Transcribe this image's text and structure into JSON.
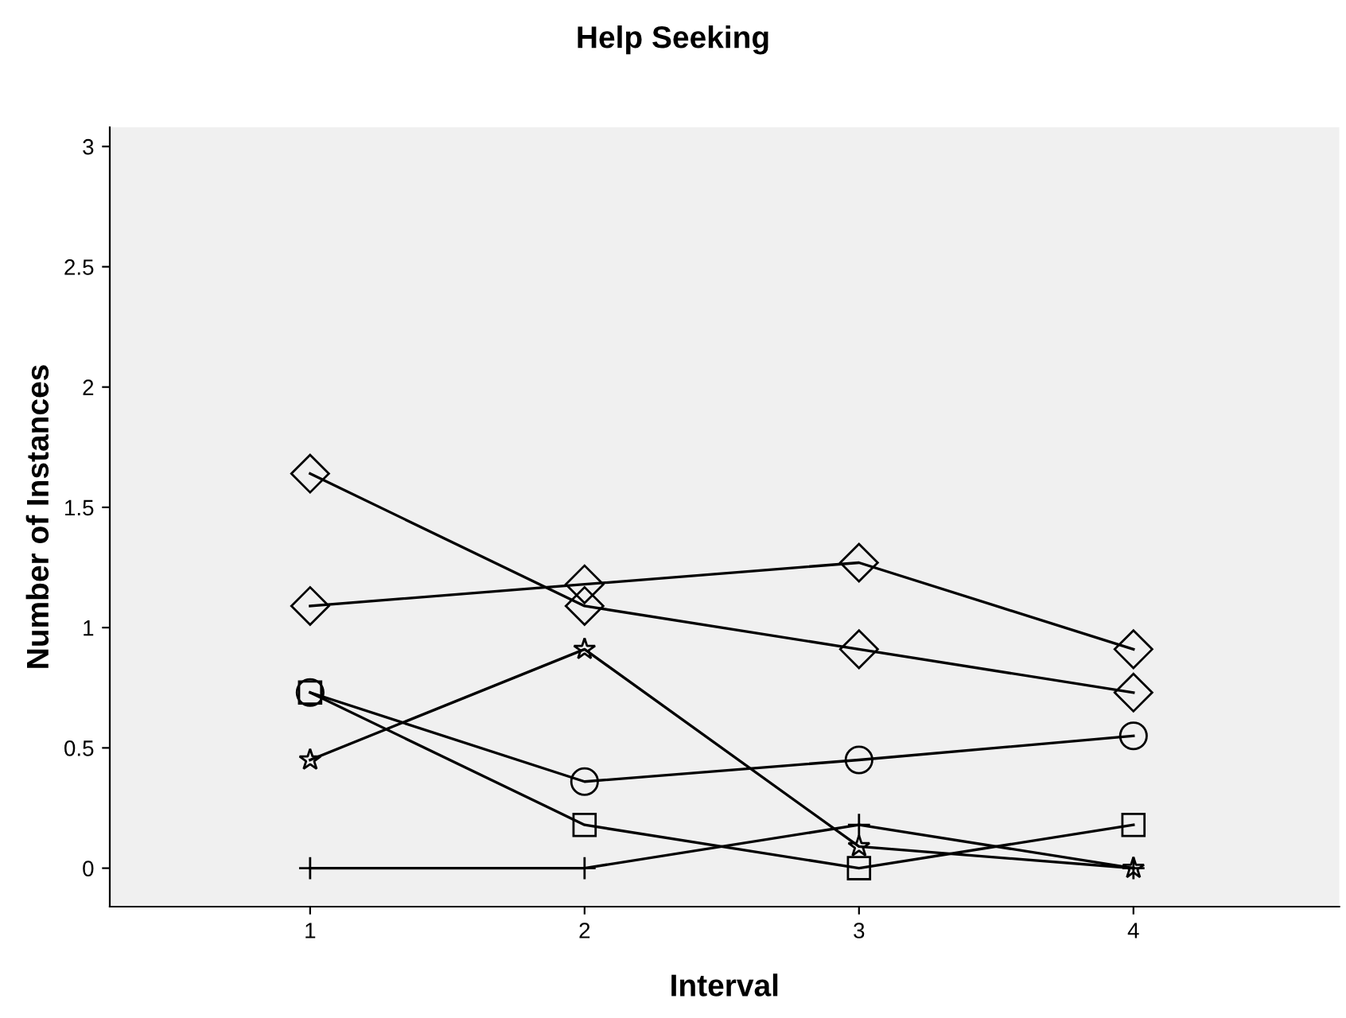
{
  "chart_data": {
    "type": "line",
    "title": "Help Seeking",
    "xlabel": "Interval",
    "ylabel": "Number of Instances",
    "x": [
      1,
      2,
      3,
      4
    ],
    "series": [
      {
        "color": "#000000",
        "marker": "diamond",
        "values": [
          1.64,
          1.09,
          0.91,
          0.73
        ]
      },
      {
        "color": "#000000",
        "marker": "diamond",
        "values": [
          1.09,
          1.18,
          1.27,
          0.91
        ]
      },
      {
        "color": "#000000",
        "marker": "star",
        "values": [
          0.45,
          0.91,
          0.09,
          0
        ]
      },
      {
        "color": "#000000",
        "marker": "circle",
        "values": [
          0.73,
          0.36,
          0.45,
          0.55
        ]
      },
      {
        "color": "#000000",
        "marker": "square",
        "values": [
          0.73,
          0.18,
          0,
          0.18
        ]
      },
      {
        "color": "#000000",
        "marker": "cross",
        "values": [
          0,
          0,
          0.18,
          0
        ]
      }
    ],
    "xlim": [
      0.27,
      4.75
    ],
    "ylim": [
      -0.16,
      3.08
    ],
    "xticks": [
      1,
      2,
      3,
      4
    ],
    "yticks": [
      0,
      0.5,
      1,
      1.5,
      2,
      2.5,
      3
    ],
    "grid": false,
    "legend": false,
    "line_style": "solid"
  }
}
